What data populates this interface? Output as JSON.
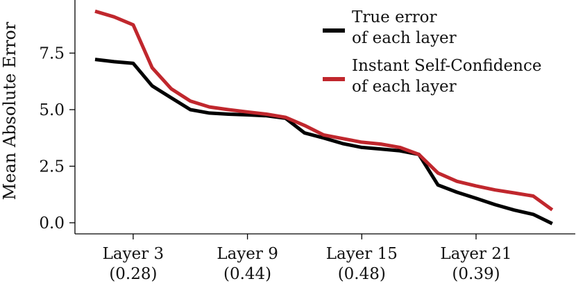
{
  "chart_data": {
    "type": "line",
    "title": "",
    "xlabel": "",
    "ylabel": "Mean Absolute Error",
    "ylim": [
      0,
      9.4
    ],
    "y_ticks": [
      "0.0",
      "2.5",
      "5.0",
      "7.5"
    ],
    "x_ticks": [
      {
        "layer": 3,
        "line1": "Layer 3",
        "line2": "(0.28)"
      },
      {
        "layer": 9,
        "line1": "Layer 9",
        "line2": "(0.44)"
      },
      {
        "layer": 15,
        "line1": "Layer 15",
        "line2": "(0.48)"
      },
      {
        "layer": 21,
        "line1": "Layer 21",
        "line2": "(0.39)"
      }
    ],
    "x": [
      1,
      2,
      3,
      4,
      5,
      6,
      7,
      8,
      9,
      10,
      11,
      12,
      13,
      14,
      15,
      16,
      17,
      18,
      19,
      20,
      21,
      22,
      23,
      24,
      25
    ],
    "grid": false,
    "legend_position": "top-right",
    "series": [
      {
        "name": "True error\nof each layer",
        "legend_lines": [
          "True error",
          "of each layer"
        ],
        "color": "#000000",
        "values": [
          7.22,
          7.12,
          7.05,
          6.05,
          5.52,
          5.0,
          4.85,
          4.8,
          4.77,
          4.73,
          4.62,
          3.97,
          3.75,
          3.5,
          3.33,
          3.26,
          3.18,
          3.02,
          1.67,
          1.35,
          1.08,
          0.8,
          0.56,
          0.37,
          -0.04
        ]
      },
      {
        "name": "Instant Self-Confidence\nof each layer",
        "legend_lines": [
          "Instant Self-Confidence",
          "of each layer"
        ],
        "color": "#c0272d",
        "values": [
          9.35,
          9.1,
          8.75,
          6.85,
          5.92,
          5.38,
          5.12,
          5.0,
          4.9,
          4.8,
          4.66,
          4.3,
          3.88,
          3.72,
          3.56,
          3.48,
          3.33,
          3.02,
          2.2,
          1.83,
          1.63,
          1.45,
          1.32,
          1.18,
          0.57
        ]
      }
    ]
  }
}
